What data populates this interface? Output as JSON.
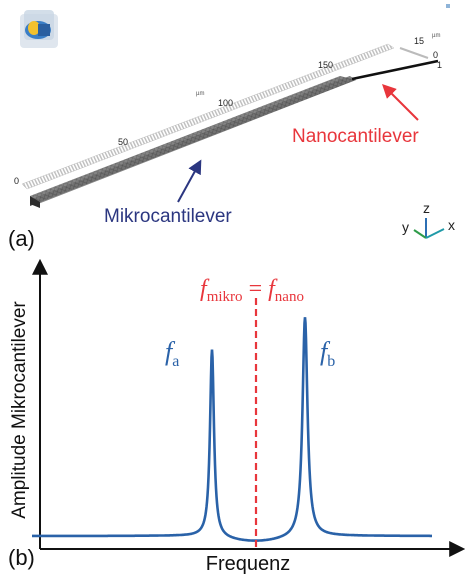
{
  "panel_a": {
    "label": "(a)",
    "scale": {
      "unit": "µm",
      "ticks": [
        "0",
        "50",
        "100",
        "150"
      ],
      "y_unit": "µm",
      "y_ticks": [
        "15",
        "0"
      ],
      "z_tick": "1"
    },
    "callouts": {
      "nano": "Nanocantilever",
      "mikro": "Mikrocantilever"
    },
    "axes_triad": {
      "x": "x",
      "y": "y",
      "z": "z"
    },
    "colors": {
      "nano_callout": "#e8363c",
      "mikro_callout": "#2b3680",
      "triad_x": "#1f9aa8",
      "triad_y": "#2e9c4a",
      "triad_z": "#2c6fb4"
    }
  },
  "panel_b": {
    "label": "(b)",
    "y_axis_label": "Amplitude Mikrocantilever",
    "x_axis_label": "Frequenz",
    "equal_sign": "=",
    "peaks": {
      "a": {
        "base": "f",
        "sub": "a"
      },
      "b": {
        "base": "f",
        "sub": "b"
      }
    },
    "condition": {
      "left": {
        "base": "f",
        "sub": "mikro"
      },
      "right": {
        "base": "f",
        "sub": "nano"
      }
    },
    "colors": {
      "curve": "#2a62a8",
      "condition": "#e8363c"
    }
  }
}
